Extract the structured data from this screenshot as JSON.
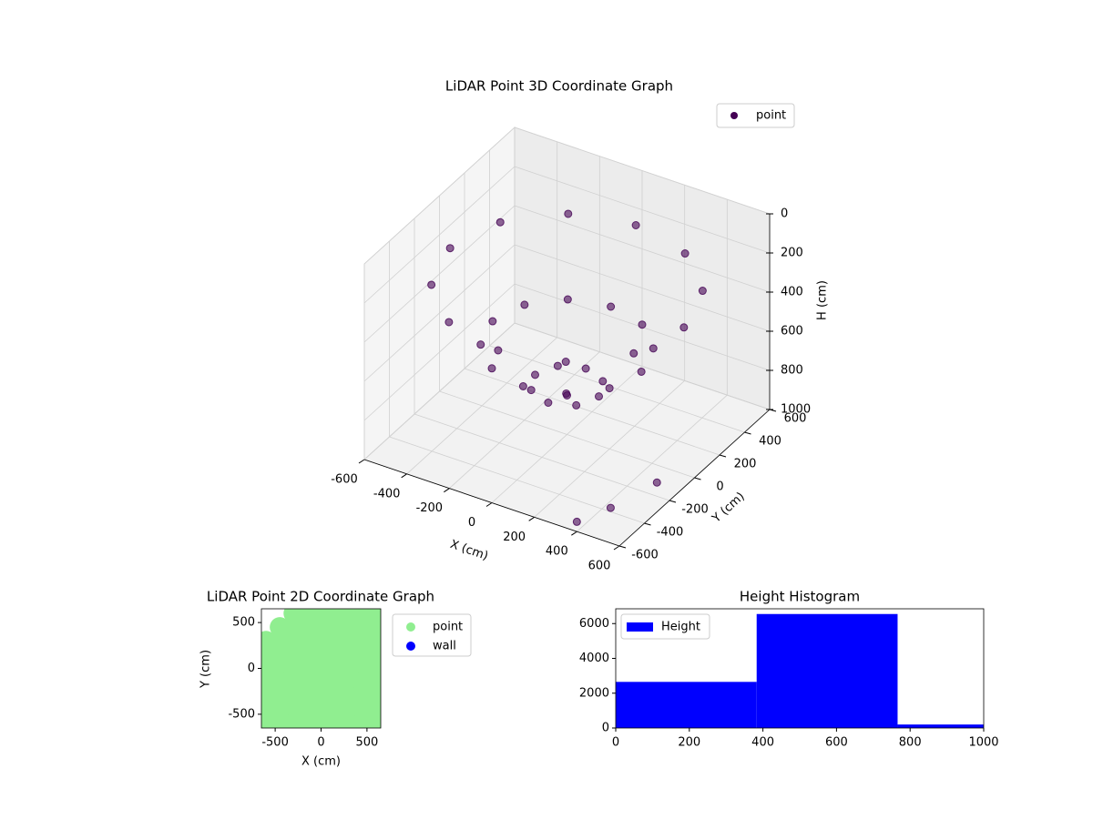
{
  "chart_data": [
    {
      "type": "scatter3d",
      "title": "LiDAR Point 3D Coordinate Graph",
      "xlabel": "X (cm)",
      "ylabel": "Y (cm)",
      "zlabel": "H (cm)",
      "xlim": [
        -600,
        600
      ],
      "xticks": [
        -600,
        -400,
        -200,
        0,
        200,
        400,
        600
      ],
      "ylim": [
        -600,
        600
      ],
      "yticks": [
        -600,
        -400,
        -200,
        0,
        200,
        400,
        600
      ],
      "zlim": [
        0,
        1000
      ],
      "zticks": [
        0,
        200,
        400,
        600,
        800,
        1000
      ],
      "z_inverted": true,
      "grid": true,
      "legend": "upper right",
      "series": [
        {
          "name": "point",
          "color": "#440154",
          "x": [
            550,
            476,
            275,
            0,
            -275,
            -476,
            -550,
            -476,
            -275,
            0,
            275,
            476,
            350,
            303,
            175,
            0,
            -175,
            -303,
            -350,
            -303,
            -175,
            0,
            175,
            303,
            150,
            106,
            0,
            -106,
            -150,
            -106,
            0,
            106,
            0,
            500,
            400,
            600
          ],
          "y": [
            0,
            275,
            476,
            550,
            476,
            275,
            0,
            -275,
            -476,
            -550,
            -476,
            -275,
            0,
            175,
            303,
            350,
            303,
            175,
            0,
            -175,
            -303,
            -350,
            -303,
            -175,
            0,
            106,
            150,
            106,
            0,
            -106,
            -150,
            -106,
            0,
            -500,
            -600,
            -300
          ],
          "z": [
            250,
            250,
            250,
            250,
            250,
            250,
            250,
            250,
            250,
            250,
            250,
            250,
            550,
            550,
            550,
            550,
            550,
            550,
            550,
            550,
            550,
            550,
            550,
            550,
            750,
            750,
            750,
            750,
            750,
            750,
            750,
            750,
            800,
            900,
            950,
            850
          ]
        }
      ]
    },
    {
      "type": "scatter",
      "title": "LiDAR Point 2D Coordinate Graph",
      "xlabel": "X (cm)",
      "ylabel": "Y (cm)",
      "xlim": [
        -650,
        650
      ],
      "xticks": [
        -500,
        0,
        500
      ],
      "ylim": [
        -650,
        650
      ],
      "yticks": [
        -500,
        0,
        500
      ],
      "legend": "outside right",
      "series": [
        {
          "name": "point",
          "color": "#90ee90",
          "x": [
            -300,
            -150,
            0,
            150,
            300,
            450,
            600,
            -450,
            -300,
            -150,
            0,
            150,
            300,
            450,
            600,
            -600,
            -450,
            -300,
            -150,
            0,
            150,
            300,
            450,
            600,
            -600,
            -450,
            -300,
            -150,
            0,
            150,
            300,
            450,
            600,
            -600,
            -450,
            -300,
            -150,
            0,
            150,
            300,
            450,
            600,
            -600,
            -450,
            -300,
            -150,
            0,
            150,
            300,
            450,
            600,
            -600,
            -450,
            -300,
            -150,
            0,
            150,
            300,
            450,
            600,
            -600,
            -450,
            -300,
            -150,
            0,
            150,
            300,
            450,
            600,
            -600,
            -450,
            -300,
            -150,
            0,
            150,
            300,
            450,
            600
          ],
          "y": [
            600,
            600,
            600,
            600,
            600,
            600,
            600,
            450,
            450,
            450,
            450,
            450,
            450,
            450,
            450,
            300,
            300,
            300,
            300,
            300,
            300,
            300,
            300,
            300,
            150,
            150,
            150,
            150,
            150,
            150,
            150,
            150,
            150,
            0,
            0,
            0,
            0,
            0,
            0,
            0,
            0,
            0,
            -150,
            -150,
            -150,
            -150,
            -150,
            -150,
            -150,
            -150,
            -150,
            -300,
            -300,
            -300,
            -300,
            -300,
            -300,
            -300,
            -300,
            -300,
            -450,
            -450,
            -450,
            -450,
            -450,
            -450,
            -450,
            -450,
            -450,
            -600,
            -600,
            -600,
            -600,
            -600,
            -600,
            -600,
            -600,
            -600
          ]
        },
        {
          "name": "wall",
          "color": "#0000ff",
          "x": [],
          "y": []
        }
      ]
    },
    {
      "type": "histogram",
      "title": "Height Histogram",
      "bins": [
        0,
        383,
        766,
        1149
      ],
      "values": [
        2650,
        6550,
        200
      ],
      "color": "#0000ff",
      "series_name": "Height",
      "legend": "upper left",
      "xlim": [
        0,
        1000
      ],
      "xticks": [
        0,
        200,
        400,
        600,
        800,
        1000
      ],
      "ylim": [
        0,
        6850
      ],
      "yticks": [
        0,
        2000,
        4000,
        6000
      ]
    }
  ]
}
